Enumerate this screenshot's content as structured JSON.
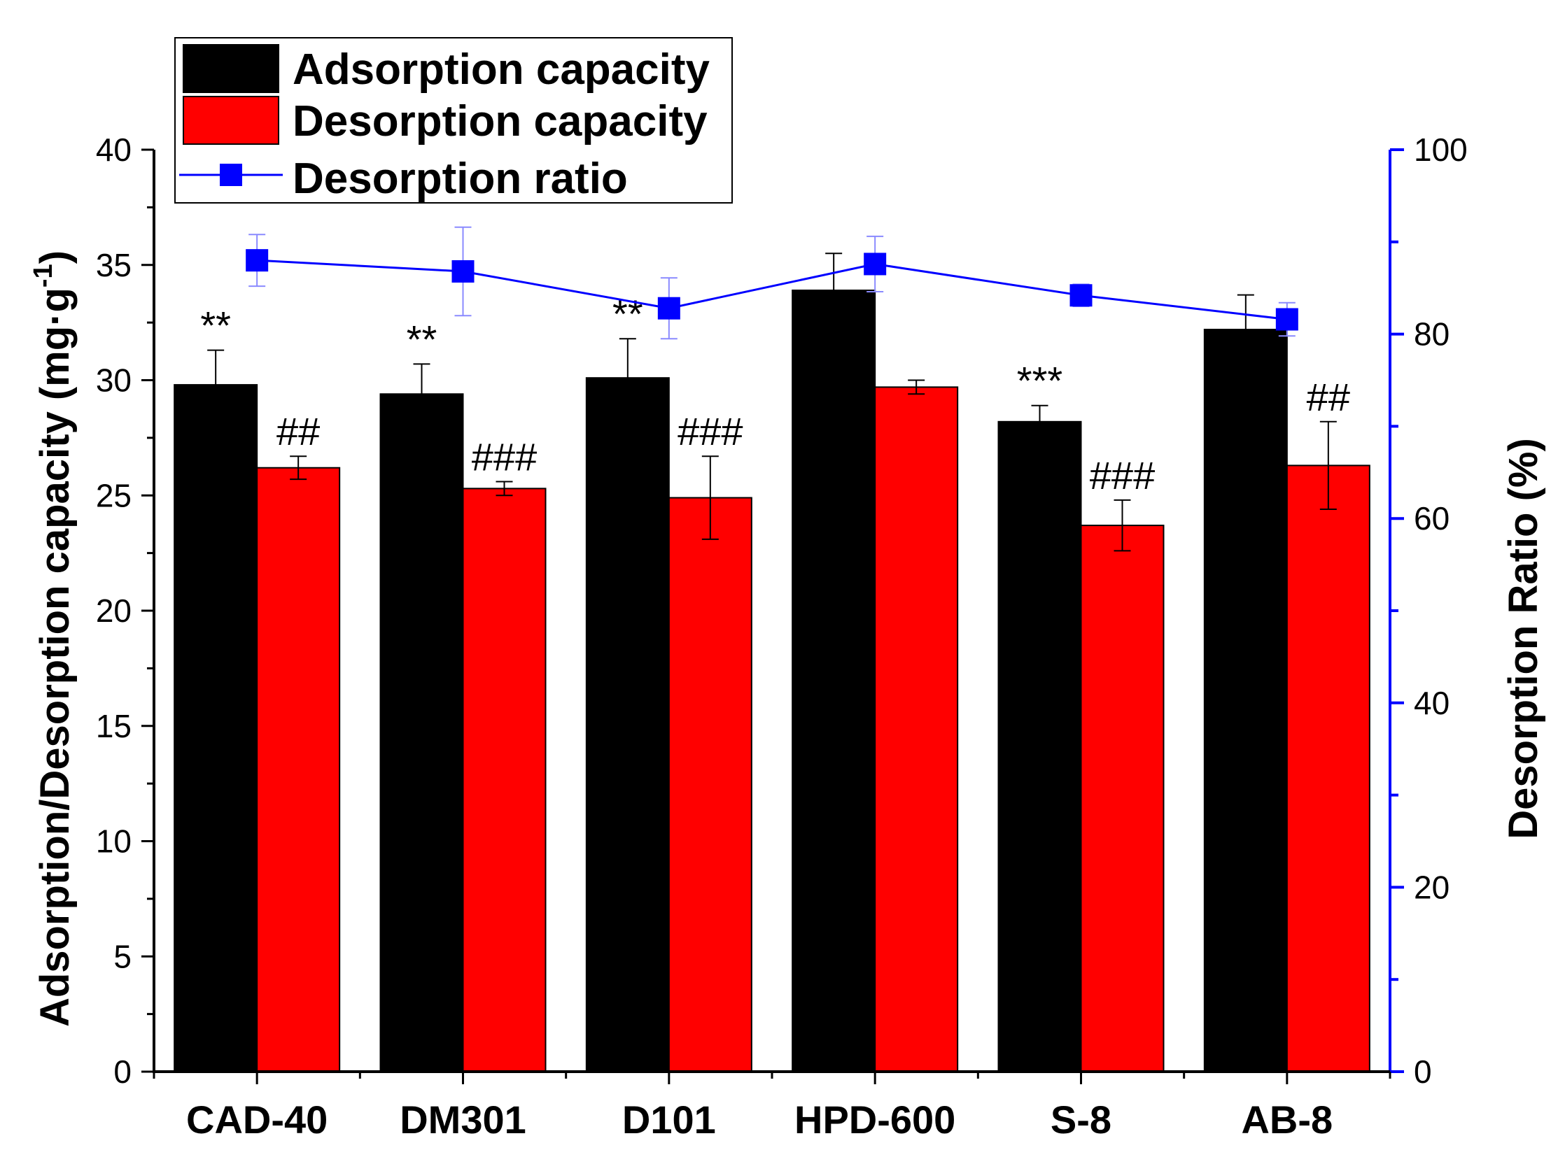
{
  "chart_data": {
    "type": "bar",
    "categories": [
      "CAD-40",
      "DM301",
      "D101",
      "HPD-600",
      "S-8",
      "AB-8"
    ],
    "series": [
      {
        "name": "Adsorption capacity",
        "type": "bar",
        "color": "#000000",
        "values": [
          29.8,
          29.4,
          30.1,
          33.9,
          28.2,
          32.2
        ],
        "errors": [
          1.5,
          1.3,
          1.7,
          1.6,
          0.7,
          1.5
        ],
        "labels": [
          "**",
          "**",
          "**",
          "",
          "***",
          ""
        ]
      },
      {
        "name": "Desorption capacity",
        "type": "bar",
        "color": "#ff0000",
        "values": [
          26.2,
          25.3,
          24.9,
          29.7,
          23.7,
          26.3
        ],
        "errors": [
          0.5,
          0.3,
          1.8,
          0.3,
          1.1,
          1.9
        ],
        "labels": [
          "##",
          "###",
          "###",
          "",
          "###",
          "##"
        ]
      },
      {
        "name": "Desorption ratio",
        "type": "line",
        "axis": "right",
        "color": "#0000ff",
        "marker": "square",
        "values": [
          88.0,
          86.8,
          82.8,
          87.6,
          84.2,
          81.6
        ],
        "errors": [
          2.8,
          4.8,
          3.3,
          3.0,
          1.2,
          1.8
        ]
      }
    ],
    "ylabel": "Adsorption/Desorption capacity (mg·g",
    "ylabel_superscript": "-1",
    "ylabel_close": ")",
    "ylabel_right": "Desorption Ratio (%)",
    "ylim": [
      0,
      40
    ],
    "yticks": [
      "0",
      "5",
      "10",
      "15",
      "20",
      "25",
      "30",
      "35",
      "40"
    ],
    "ylim_right": [
      0,
      100
    ],
    "yticks_right": [
      "0",
      "20",
      "40",
      "60",
      "80",
      "100"
    ],
    "right_axis_color": "#0000ff",
    "legend_position": "top-left",
    "grid": false
  }
}
